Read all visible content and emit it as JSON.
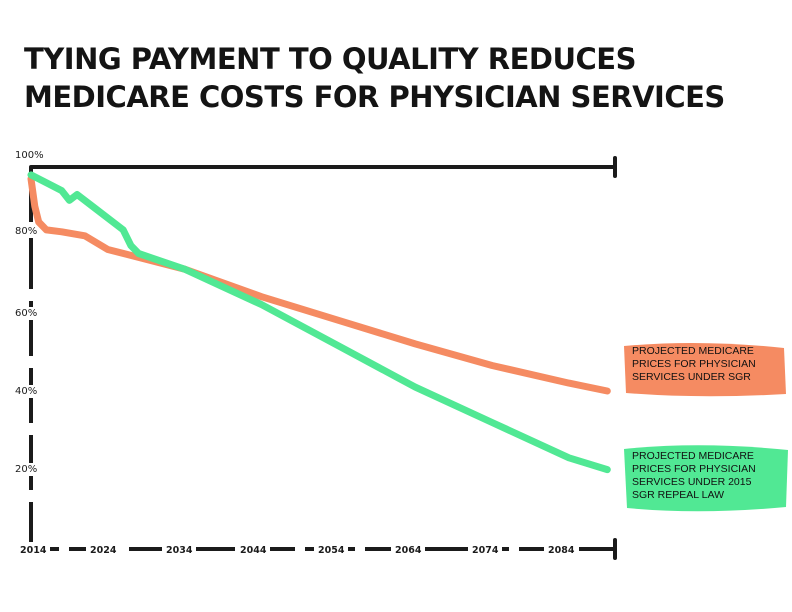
{
  "title_lines": [
    "TYING PAYMENT TO QUALITY REDUCES",
    "MEDICARE COSTS FOR PHYSICIAN SERVICES"
  ],
  "colors": {
    "sgr": "#f58b62",
    "repeal": "#51e894",
    "axis": "#1b1b1b"
  },
  "chart_data": {
    "type": "line",
    "title": "TYING PAYMENT TO QUALITY REDUCES MEDICARE COSTS FOR PHYSICIAN SERVICES",
    "xlabel": "",
    "ylabel": "",
    "xlim": [
      2014,
      2090
    ],
    "ylim": [
      0,
      100
    ],
    "x_ticks": [
      "2014",
      "2024",
      "2034",
      "2044",
      "2054",
      "2064",
      "2074",
      "2084"
    ],
    "y_ticks": [
      "100%",
      "80%",
      "60%",
      "40%",
      "20%"
    ],
    "grid": false,
    "series": [
      {
        "name": "PROJECTED MEDICARE PRICES FOR PHYSICIAN SERVICES UNDER SGR",
        "label_lines": [
          "PROJECTED MEDICARE",
          "PRICES FOR PHYSICIAN",
          "SERVICES UNDER SGR"
        ],
        "color": "#f58b62",
        "x": [
          2014,
          2014.5,
          2015,
          2016,
          2018,
          2021,
          2024,
          2034,
          2044,
          2054,
          2064,
          2074,
          2084,
          2089
        ],
        "y": [
          97,
          90,
          86,
          84,
          83.5,
          82.5,
          79,
          74,
          67,
          61,
          55,
          49.5,
          45,
          43
        ]
      },
      {
        "name": "PROJECTED MEDICARE PRICES FOR PHYSICIAN SERVICES UNDER 2015 SGR REPEAL LAW",
        "label_lines": [
          "PROJECTED MEDICARE",
          "PRICES FOR PHYSICIAN",
          "SERVICES UNDER 2015",
          "SGR REPEAL LAW"
        ],
        "color": "#51e894",
        "x": [
          2014,
          2016,
          2018,
          2019,
          2020,
          2022,
          2026,
          2027,
          2028,
          2034,
          2044,
          2054,
          2064,
          2074,
          2084,
          2089
        ],
        "y": [
          98,
          96,
          94,
          91.5,
          93,
          90,
          84,
          80,
          78,
          74,
          65,
          54.5,
          44,
          35,
          26,
          23
        ]
      }
    ]
  }
}
